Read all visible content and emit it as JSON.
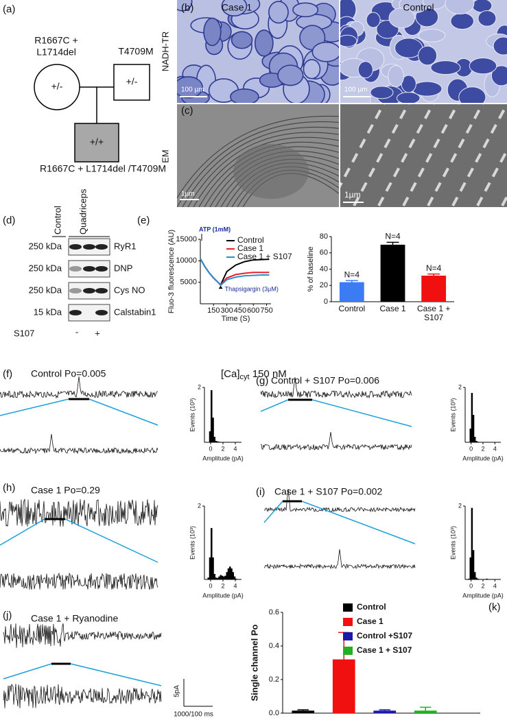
{
  "panel_a": {
    "label": "(a)",
    "mother_genotype": [
      "R1667C +",
      "L1714del"
    ],
    "mother_symbol": "+/-",
    "father_genotype": "T4709M",
    "father_symbol": "+/-",
    "child_symbol": "+/+",
    "child_genotype": "R1667C + L1714del /T4709M"
  },
  "panel_b": {
    "label": "(b)",
    "row_label": "NADH-TR",
    "columns": [
      "Case 1",
      "Control"
    ],
    "scale_bars": [
      "100 µm",
      "100 µm"
    ]
  },
  "panel_c": {
    "label": "(c)",
    "row_label": "EM",
    "scale_bars": [
      "1µm",
      "1µm"
    ]
  },
  "panel_d": {
    "label": "(d)",
    "columns": [
      "Control",
      "Quadriceps"
    ],
    "rows": [
      {
        "marker": "250 kDa",
        "name": "RyR1"
      },
      {
        "marker": "250 kDa",
        "name": "DNP"
      },
      {
        "marker": "250 kDa",
        "name": "Cys NO"
      },
      {
        "marker": "15 kDa",
        "name": "Calstabin1"
      }
    ],
    "treatment": "S107",
    "treatment_marks": [
      "-",
      "+"
    ]
  },
  "panel_e": {
    "label": "(e)"
  },
  "calcium": {
    "prefix": "[Ca]",
    "subscript": "cyt",
    "value": " 150 nM"
  },
  "recordings": [
    {
      "label": "(f)",
      "title": "Control Po=0.005"
    },
    {
      "label": "(g)",
      "title": "Control + S107 Po=0.006"
    },
    {
      "label": "(h)",
      "title": "Case 1 Po=0.29"
    },
    {
      "label": "(i)",
      "title": "Case 1 + S107 Po=0.002"
    },
    {
      "label": "(j)",
      "title": "Case 1 + Ryanodine"
    }
  ],
  "scale_bar": {
    "current": "5pA",
    "time": "1000/100 ms"
  },
  "panel_k": {
    "label": "(k)"
  },
  "chart_data": [
    {
      "type": "line",
      "ylabel": "Fluo-3 fluorescence (AU)",
      "xlabel": "Time (S)",
      "annotations": [
        "ATP (1mM)",
        "Thapsigargin (3µM)"
      ],
      "x": [
        0,
        50,
        100,
        150,
        200,
        230,
        300,
        400,
        500,
        600,
        700,
        780
      ],
      "xlim": [
        0,
        800
      ],
      "xticks": [
        150,
        300,
        450,
        600,
        750
      ],
      "ylim": [
        0,
        15000
      ],
      "yticks": [
        5000,
        10000,
        15000
      ],
      "series": [
        {
          "name": "Control",
          "color": "#000000",
          "values": [
            10500,
            8700,
            7200,
            6000,
            5000,
            4400,
            7500,
            9000,
            9800,
            10200,
            10300,
            10350
          ]
        },
        {
          "name": "Case 1",
          "color": "#e8202a",
          "values": [
            10500,
            8700,
            7200,
            6000,
            5000,
            4400,
            6000,
            6800,
            7100,
            7300,
            7300,
            7300
          ]
        },
        {
          "name": "Case 1 + S107",
          "color": "#2a8fd0",
          "values": [
            10500,
            8700,
            7200,
            6000,
            5000,
            4300,
            5600,
            6200,
            6500,
            6600,
            6700,
            6700
          ]
        }
      ]
    },
    {
      "type": "bar",
      "ylabel": "% of baseline",
      "categories": [
        "Control",
        "Case 1",
        "Case 1 + S107"
      ],
      "values": [
        24,
        70,
        32
      ],
      "errors": [
        2,
        3,
        2
      ],
      "colors": [
        "#3b7cf5",
        "#000000",
        "#f01010"
      ],
      "annotations": [
        "N=4",
        "N=4",
        "N=4"
      ],
      "ylim": [
        0,
        80
      ],
      "yticks": [
        0,
        20,
        40,
        60,
        80
      ]
    },
    {
      "type": "histogram",
      "ylabel": "Events (10³)",
      "xlabel": "Amplitude (pA)",
      "color": "#000000",
      "xlim": [
        -1,
        5
      ],
      "xticks": [
        0,
        2,
        4
      ],
      "ylim": [
        0,
        2
      ],
      "yticks": [
        2
      ],
      "bins": [
        -1,
        -0.75,
        -0.5,
        -0.25,
        0,
        0.25,
        0.5,
        0.75,
        1,
        1.25,
        1.5,
        1.75,
        2,
        2.25,
        2.5,
        2.75,
        3,
        3.25,
        3.5,
        3.75,
        4,
        4.25,
        4.5,
        4.75,
        5
      ],
      "counts": [
        0,
        0,
        0.01,
        0.4,
        1.9,
        0.9,
        0.2,
        0.05,
        0.03,
        0.02,
        0.01,
        0,
        0,
        0,
        0,
        0,
        0,
        0,
        0,
        0,
        0,
        0,
        0,
        0
      ]
    },
    {
      "type": "histogram",
      "ylabel": "Events (10³)",
      "xlabel": "Amplitude (pA)",
      "color": "#000000",
      "xlim": [
        -1,
        5
      ],
      "xticks": [
        0,
        2,
        4
      ],
      "ylim": [
        0,
        2
      ],
      "yticks": [
        2
      ],
      "bins": [
        -1,
        -0.75,
        -0.5,
        -0.25,
        0,
        0.25,
        0.5,
        0.75,
        1,
        1.25,
        1.5,
        1.75,
        2,
        2.25,
        2.5,
        2.75,
        3,
        3.25,
        3.5,
        3.75,
        4,
        4.25,
        4.5,
        4.75,
        5
      ],
      "counts": [
        0,
        0,
        0.01,
        0.5,
        1.8,
        1.0,
        0.2,
        0.05,
        0.02,
        0.01,
        0,
        0,
        0,
        0,
        0.01,
        0.01,
        0.01,
        0,
        0,
        0,
        0,
        0,
        0,
        0
      ]
    },
    {
      "type": "histogram",
      "ylabel": "Events (10³)",
      "xlabel": "Amplitude (pA)",
      "color": "#000000",
      "xlim": [
        -1,
        5
      ],
      "xticks": [
        0,
        2,
        4
      ],
      "ylim": [
        0,
        2
      ],
      "yticks": [
        2
      ],
      "bins": [
        -1,
        -0.75,
        -0.5,
        -0.25,
        0,
        0.25,
        0.5,
        0.75,
        1,
        1.25,
        1.5,
        1.75,
        2,
        2.25,
        2.5,
        2.75,
        3,
        3.25,
        3.5,
        3.75,
        4,
        4.25,
        4.5,
        4.75,
        5
      ],
      "counts": [
        0,
        0,
        0.05,
        0.6,
        1.4,
        0.6,
        0.15,
        0.05,
        0.04,
        0.08,
        0.12,
        0.1,
        0.08,
        0.1,
        0.2,
        0.3,
        0.35,
        0.3,
        0.2,
        0.08,
        0.02,
        0,
        0,
        0
      ]
    },
    {
      "type": "histogram",
      "ylabel": "Events (10³)",
      "xlabel": "Amplitude (pA)",
      "color": "#000000",
      "xlim": [
        -1,
        5
      ],
      "xticks": [
        0,
        2,
        4
      ],
      "ylim": [
        0,
        2
      ],
      "yticks": [
        2
      ],
      "bins": [
        -1,
        -0.75,
        -0.5,
        -0.25,
        0,
        0.25,
        0.5,
        0.75,
        1,
        1.25,
        1.5,
        1.75,
        2,
        2.25,
        2.5,
        2.75,
        3,
        3.25,
        3.5,
        3.75,
        4,
        4.25,
        4.5,
        4.75,
        5
      ],
      "counts": [
        0,
        0,
        0.02,
        0.6,
        1.95,
        0.8,
        0.2,
        0.05,
        0.02,
        0.01,
        0.01,
        0,
        0,
        0.01,
        0.02,
        0.01,
        0,
        0,
        0,
        0,
        0,
        0,
        0,
        0
      ]
    },
    {
      "type": "bar",
      "ylabel": "Single channel Po",
      "ylim": [
        0,
        0.6
      ],
      "yticks": [
        {
          "value": 0,
          "label": "0.0"
        },
        0.2,
        0.4,
        0.6
      ],
      "series": [
        {
          "name": "Control",
          "color": "#000000",
          "values": [
            0.015
          ],
          "errors": [
            0.005
          ]
        },
        {
          "name": "Case 1",
          "color": "#f01010",
          "values": [
            0.32
          ],
          "errors": [
            0.16
          ]
        },
        {
          "name": "Control +S107",
          "color": "#1a1aa8",
          "values": [
            0.015
          ],
          "errors": [
            0.005
          ]
        },
        {
          "name": "Case 1 + S107",
          "color": "#22b022",
          "values": [
            0.015
          ],
          "errors": [
            0.02
          ]
        }
      ]
    }
  ]
}
